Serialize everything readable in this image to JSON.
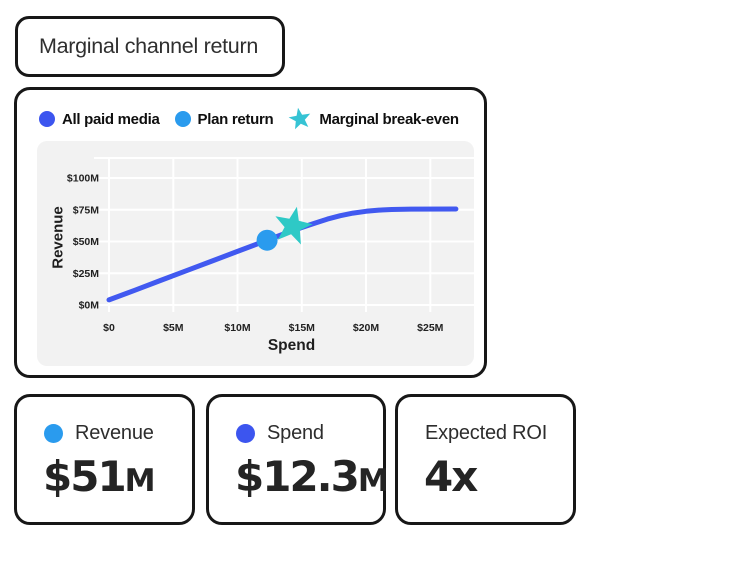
{
  "title_card": {
    "label": "Marginal channel return"
  },
  "legend": {
    "items": [
      {
        "label": "All paid media",
        "marker": "dot",
        "color": "#3C55EF"
      },
      {
        "label": "Plan return",
        "marker": "dot",
        "color": "#2A9BEE"
      },
      {
        "label": "Marginal break-even",
        "marker": "star",
        "color": "#36C3D4"
      }
    ]
  },
  "chart_data": {
    "type": "line",
    "title": "Marginal channel return",
    "xlabel": "Spend",
    "ylabel": "Revenue",
    "x_tick_labels": [
      "$0",
      "$5M",
      "$10M",
      "$15M",
      "$20M",
      "$25M"
    ],
    "x_tick_values": [
      0,
      5,
      10,
      15,
      20,
      25
    ],
    "y_tick_labels": [
      "$0M",
      "$25M",
      "$50M",
      "$75M",
      "$100M"
    ],
    "y_tick_values": [
      0,
      25,
      50,
      75,
      100
    ],
    "xlim": [
      0,
      27.5
    ],
    "ylim": [
      0,
      115
    ],
    "grid": true,
    "plot_background": "#F2F2F2",
    "gridline_color": "#FFFFFF",
    "legend_position": "top",
    "series": [
      {
        "name": "All paid media",
        "color": "#4159F0",
        "points": [
          [
            0,
            4
          ],
          [
            2,
            11.6
          ],
          [
            4,
            19.3
          ],
          [
            6,
            26.9
          ],
          [
            8,
            34.6
          ],
          [
            10,
            42.2
          ],
          [
            12.3,
            51
          ],
          [
            14,
            57.5
          ],
          [
            15,
            61
          ],
          [
            16,
            64.4
          ],
          [
            17,
            67.6
          ],
          [
            18,
            70.3
          ],
          [
            19,
            72.4
          ],
          [
            20,
            73.8
          ],
          [
            21,
            74.7
          ],
          [
            22,
            75.2
          ],
          [
            23.5,
            75.5
          ],
          [
            27,
            75.6
          ]
        ]
      }
    ],
    "markers": [
      {
        "name": "Plan return",
        "shape": "dot",
        "x": 12.3,
        "y": 51,
        "color": "#2A9BEE"
      },
      {
        "name": "Marginal break-even",
        "shape": "star",
        "x": 14.3,
        "y": 62,
        "color": "#2EC9C6"
      }
    ]
  },
  "stat_cards": [
    {
      "label": "Revenue",
      "dot_color": "#2A9BEE",
      "value": "$51",
      "suffix": "M"
    },
    {
      "label": "Spend",
      "dot_color": "#3C55EF",
      "value": "$12.3",
      "suffix": "M"
    },
    {
      "label": "Expected ROI",
      "dot_color": null,
      "value": "4x",
      "suffix": ""
    }
  ]
}
